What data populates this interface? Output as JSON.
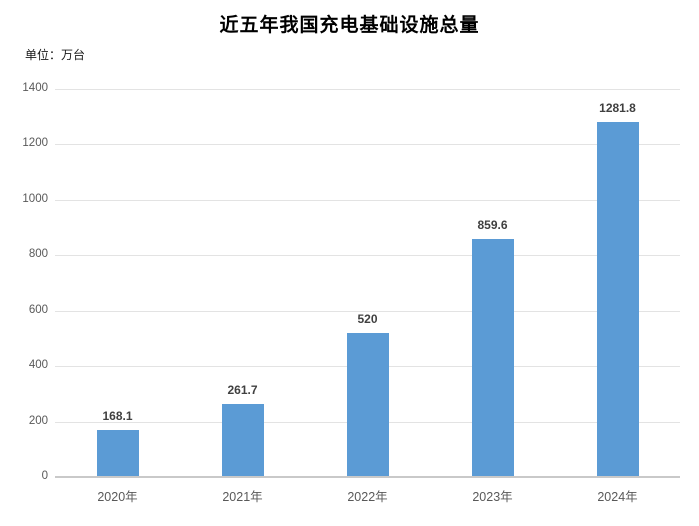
{
  "chart_data": {
    "type": "bar",
    "title": "近五年我国充电基础设施总量",
    "unit_label": "单位：万台",
    "categories": [
      "2020年",
      "2021年",
      "2022年",
      "2023年",
      "2024年"
    ],
    "values": [
      168.1,
      261.7,
      520,
      859.6,
      1281.8
    ],
    "yticks": [
      0,
      200,
      400,
      600,
      800,
      1000,
      1200,
      1400
    ],
    "ylim": [
      0,
      1400
    ],
    "xlabel": "",
    "ylabel": "",
    "grid": "horizontal",
    "legend": "none",
    "colors": {
      "bar": "#5B9BD5",
      "value_label": "#404040",
      "axis_label": "#595959",
      "gridline": "#e3e3e3",
      "axis_line": "#c9c9c9",
      "title": "#000000",
      "background": "#ffffff"
    }
  }
}
